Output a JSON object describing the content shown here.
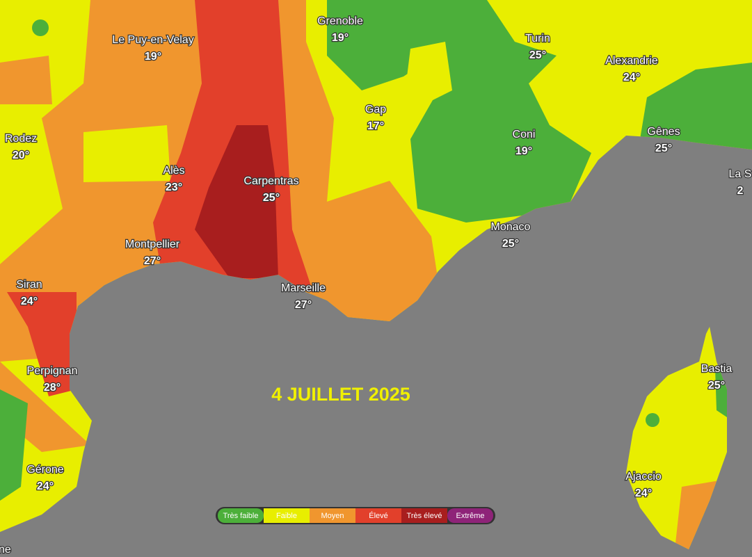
{
  "title": "4 JUILLET 2025",
  "cities": [
    {
      "name": "Grenoble",
      "temp": "19°"
    },
    {
      "name": "Le Puy-en-Velay",
      "temp": "19°"
    },
    {
      "name": "Turin",
      "temp": "25°"
    },
    {
      "name": "Alexandrie",
      "temp": "24°"
    },
    {
      "name": "Gap",
      "temp": "17°"
    },
    {
      "name": "Rodez",
      "temp": "20°"
    },
    {
      "name": "Coni",
      "temp": "19°"
    },
    {
      "name": "Gênes",
      "temp": "25°"
    },
    {
      "name": "La S",
      "temp": "2"
    },
    {
      "name": "Alès",
      "temp": "23°"
    },
    {
      "name": "Carpentras",
      "temp": "25°"
    },
    {
      "name": "Montpellier",
      "temp": "27°"
    },
    {
      "name": "Monaco",
      "temp": "25°"
    },
    {
      "name": "Siran",
      "temp": "24°"
    },
    {
      "name": "Marseille",
      "temp": "27°"
    },
    {
      "name": "Perpignan",
      "temp": "28°"
    },
    {
      "name": "Bastia",
      "temp": "25°"
    },
    {
      "name": "Gérone",
      "temp": "24°"
    },
    {
      "name": "Ajaccio",
      "temp": "24°"
    }
  ],
  "edge_label": "ne",
  "legend": [
    {
      "label": "Très faible",
      "color": "#4caf3a"
    },
    {
      "label": "Faible",
      "color": "#e8ee00"
    },
    {
      "label": "Moyen",
      "color": "#f0962e"
    },
    {
      "label": "Élevé",
      "color": "#e2402b"
    },
    {
      "label": "Très élevé",
      "color": "#a81e1e"
    },
    {
      "label": "Extrême",
      "color": "#8e2378"
    }
  ]
}
